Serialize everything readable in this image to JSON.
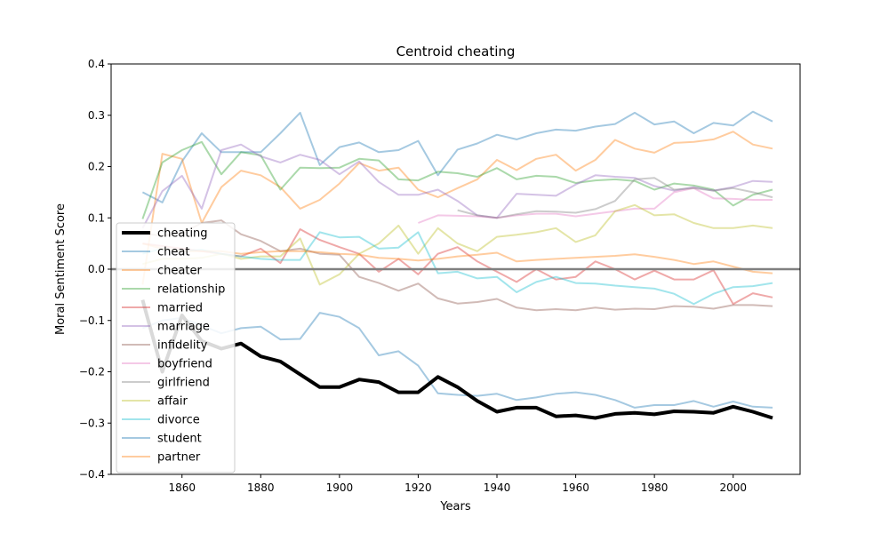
{
  "chart_data": {
    "type": "line",
    "title": "Centroid cheating",
    "xlabel": "Years",
    "ylabel": "Moral Sentiment Score",
    "xlim": [
      1842,
      2017
    ],
    "ylim": [
      -0.4,
      0.4
    ],
    "xticks": [
      1860,
      1880,
      1900,
      1920,
      1940,
      1960,
      1980,
      2000
    ],
    "yticks": [
      -0.4,
      -0.3,
      -0.2,
      -0.1,
      0.0,
      0.1,
      0.2,
      0.3,
      0.4
    ],
    "grid": false,
    "legend_position": "left",
    "reference_line": {
      "y": 0.0,
      "color": "#808080"
    },
    "series": [
      {
        "name": "cheating",
        "color": "#000000",
        "emphasis": true,
        "x": [
          1850,
          1855,
          1860,
          1865,
          1870,
          1875,
          1880,
          1885,
          1890,
          1895,
          1900,
          1905,
          1910,
          1915,
          1920,
          1925,
          1930,
          1935,
          1940,
          1945,
          1950,
          1955,
          1960,
          1965,
          1970,
          1975,
          1980,
          1985,
          1990,
          1995,
          2000,
          2005,
          2010
        ],
        "y": [
          -0.06,
          -0.2,
          -0.09,
          -0.14,
          -0.155,
          -0.145,
          -0.17,
          -0.18,
          -0.205,
          -0.23,
          -0.23,
          -0.215,
          -0.22,
          -0.24,
          -0.24,
          -0.21,
          -0.23,
          -0.257,
          -0.278,
          -0.27,
          -0.27,
          -0.287,
          -0.285,
          -0.29,
          -0.282,
          -0.28,
          -0.283,
          -0.277,
          -0.278,
          -0.28,
          -0.268,
          -0.278,
          -0.29
        ]
      },
      {
        "name": "cheat",
        "color": "#1f77b4",
        "x": [
          1850,
          1855,
          1860,
          1865,
          1870,
          1875,
          1880,
          1885,
          1890,
          1895,
          1900,
          1905,
          1910,
          1915,
          1920,
          1925,
          1930,
          1935,
          1940,
          1945,
          1950,
          1955,
          1960,
          1965,
          1970,
          1975,
          1980,
          1985,
          1990,
          1995,
          2000,
          2005,
          2010
        ],
        "y": [
          0.15,
          0.13,
          0.21,
          0.265,
          0.228,
          0.228,
          0.228,
          0.265,
          0.305,
          0.203,
          0.238,
          0.247,
          0.228,
          0.232,
          0.25,
          0.183,
          0.233,
          0.245,
          0.262,
          0.253,
          0.265,
          0.272,
          0.27,
          0.278,
          0.283,
          0.305,
          0.282,
          0.288,
          0.265,
          0.285,
          0.28,
          0.307,
          0.288
        ]
      },
      {
        "name": "cheater",
        "color": "#ff7f0e",
        "x": [
          1850,
          1855,
          1860,
          1865,
          1870,
          1875,
          1880,
          1885,
          1890,
          1895,
          1900,
          1905,
          1910,
          1915,
          1920,
          1925,
          1930,
          1935,
          1940,
          1945,
          1950,
          1955,
          1960,
          1965,
          1970,
          1975,
          1980,
          1985,
          1990,
          1995,
          2000,
          2005,
          2010
        ],
        "y": [
          -0.03,
          0.225,
          0.215,
          0.09,
          0.16,
          0.192,
          0.183,
          0.16,
          0.118,
          0.135,
          0.167,
          0.207,
          0.192,
          0.198,
          0.155,
          0.14,
          0.158,
          0.175,
          0.213,
          0.193,
          0.215,
          0.223,
          0.192,
          0.213,
          0.252,
          0.235,
          0.227,
          0.246,
          0.248,
          0.253,
          0.268,
          0.243,
          0.235
        ]
      },
      {
        "name": "relationship",
        "color": "#2ca02c",
        "x": [
          1850,
          1855,
          1860,
          1865,
          1870,
          1875,
          1880,
          1885,
          1890,
          1895,
          1900,
          1905,
          1910,
          1915,
          1920,
          1925,
          1930,
          1935,
          1940,
          1945,
          1950,
          1955,
          1960,
          1965,
          1970,
          1975,
          1980,
          1985,
          1990,
          1995,
          2000,
          2005,
          2010
        ],
        "y": [
          0.098,
          0.208,
          0.232,
          0.248,
          0.185,
          0.228,
          0.222,
          0.155,
          0.198,
          0.197,
          0.198,
          0.215,
          0.212,
          0.175,
          0.173,
          0.19,
          0.187,
          0.18,
          0.197,
          0.175,
          0.182,
          0.18,
          0.168,
          0.173,
          0.175,
          0.172,
          0.155,
          0.167,
          0.163,
          0.155,
          0.124,
          0.145,
          0.155
        ]
      },
      {
        "name": "married",
        "color": "#d62728",
        "x": [
          1850,
          1855,
          1860,
          1865,
          1870,
          1875,
          1880,
          1885,
          1890,
          1895,
          1900,
          1905,
          1910,
          1915,
          1920,
          1925,
          1930,
          1935,
          1940,
          1945,
          1950,
          1955,
          1960,
          1965,
          1970,
          1975,
          1980,
          1985,
          1990,
          1995,
          2000,
          2005,
          2010
        ],
        "y": [
          0.05,
          0.045,
          0.04,
          0.035,
          0.03,
          0.025,
          0.04,
          0.012,
          0.078,
          0.057,
          0.043,
          0.03,
          -0.005,
          0.02,
          -0.01,
          0.03,
          0.043,
          0.015,
          -0.005,
          -0.025,
          0.0,
          -0.02,
          -0.015,
          0.015,
          0.0,
          -0.02,
          -0.003,
          -0.02,
          -0.02,
          -0.002,
          -0.068,
          -0.047,
          -0.055
        ]
      },
      {
        "name": "marriage",
        "color": "#9467bd",
        "x": [
          1850,
          1855,
          1860,
          1865,
          1870,
          1875,
          1880,
          1885,
          1890,
          1895,
          1900,
          1905,
          1910,
          1915,
          1920,
          1925,
          1930,
          1935,
          1940,
          1945,
          1950,
          1955,
          1960,
          1965,
          1970,
          1975,
          1980,
          1985,
          1990,
          1995,
          2000,
          2005,
          2010
        ],
        "y": [
          0.08,
          0.152,
          0.182,
          0.118,
          0.232,
          0.243,
          0.22,
          0.208,
          0.223,
          0.213,
          0.185,
          0.21,
          0.17,
          0.145,
          0.145,
          0.155,
          0.133,
          0.105,
          0.1,
          0.147,
          0.145,
          0.143,
          0.165,
          0.183,
          0.18,
          0.178,
          0.162,
          0.153,
          0.16,
          0.153,
          0.16,
          0.172,
          0.17
        ]
      },
      {
        "name": "infidelity",
        "color": "#8c564b",
        "x": [
          1850,
          1855,
          1860,
          1865,
          1870,
          1875,
          1880,
          1885,
          1890,
          1895,
          1900,
          1905,
          1910,
          1915,
          1920,
          1925,
          1930,
          1935,
          1940,
          1945,
          1950,
          1955,
          1960,
          1965,
          1970,
          1975,
          1980,
          1985,
          1990,
          1995,
          2000,
          2005,
          2010
        ],
        "y": [
          0.07,
          0.065,
          0.07,
          0.09,
          0.095,
          0.068,
          0.055,
          0.035,
          0.04,
          0.03,
          0.028,
          -0.015,
          -0.027,
          -0.042,
          -0.028,
          -0.057,
          -0.067,
          -0.064,
          -0.058,
          -0.075,
          -0.08,
          -0.078,
          -0.08,
          -0.075,
          -0.079,
          -0.077,
          -0.078,
          -0.072,
          -0.073,
          -0.077,
          -0.07,
          -0.07,
          -0.072
        ]
      },
      {
        "name": "boyfriend",
        "color": "#e377c2",
        "x": [
          1920,
          1925,
          1930,
          1935,
          1940,
          1945,
          1950,
          1955,
          1960,
          1965,
          1970,
          1975,
          1980,
          1985,
          1990,
          1995,
          2000,
          2005,
          2010
        ],
        "y": [
          0.09,
          0.105,
          0.104,
          0.103,
          0.1,
          0.105,
          0.108,
          0.108,
          0.103,
          0.108,
          0.113,
          0.118,
          0.118,
          0.15,
          0.158,
          0.138,
          0.137,
          0.135,
          0.135
        ]
      },
      {
        "name": "girlfriend",
        "color": "#7f7f7f",
        "x": [
          1930,
          1935,
          1940,
          1945,
          1950,
          1955,
          1960,
          1965,
          1970,
          1975,
          1980,
          1985,
          1990,
          1995,
          2000,
          2005,
          2010
        ],
        "y": [
          0.115,
          0.105,
          0.1,
          0.107,
          0.113,
          0.112,
          0.11,
          0.117,
          0.133,
          0.175,
          0.178,
          0.155,
          0.158,
          0.153,
          0.158,
          0.15,
          0.14
        ]
      },
      {
        "name": "affair",
        "color": "#bcbd22",
        "x": [
          1850,
          1855,
          1860,
          1865,
          1870,
          1875,
          1880,
          1885,
          1890,
          1895,
          1900,
          1905,
          1910,
          1915,
          1920,
          1925,
          1930,
          1935,
          1940,
          1945,
          1950,
          1955,
          1960,
          1965,
          1970,
          1975,
          1980,
          1985,
          1990,
          1995,
          2000,
          2005,
          2010
        ],
        "y": [
          0.01,
          0.02,
          0.02,
          0.022,
          0.03,
          0.02,
          0.025,
          0.025,
          0.06,
          -0.03,
          -0.01,
          0.03,
          0.05,
          0.085,
          0.03,
          0.08,
          0.05,
          0.035,
          0.063,
          0.067,
          0.072,
          0.08,
          0.053,
          0.066,
          0.113,
          0.125,
          0.105,
          0.107,
          0.09,
          0.08,
          0.08,
          0.085,
          0.08
        ]
      },
      {
        "name": "divorce",
        "color": "#17becf",
        "x": [
          1850,
          1855,
          1860,
          1865,
          1870,
          1875,
          1880,
          1885,
          1890,
          1895,
          1900,
          1905,
          1910,
          1915,
          1920,
          1925,
          1930,
          1935,
          1940,
          1945,
          1950,
          1955,
          1960,
          1965,
          1970,
          1975,
          1980,
          1985,
          1990,
          1995,
          2000,
          2005,
          2010
        ],
        "y": [
          0.03,
          0.04,
          0.035,
          0.038,
          0.03,
          0.025,
          0.02,
          0.018,
          0.018,
          0.072,
          0.062,
          0.063,
          0.04,
          0.042,
          0.072,
          -0.008,
          -0.005,
          -0.018,
          -0.015,
          -0.045,
          -0.025,
          -0.015,
          -0.027,
          -0.028,
          -0.032,
          -0.035,
          -0.038,
          -0.048,
          -0.068,
          -0.048,
          -0.035,
          -0.033,
          -0.027
        ]
      },
      {
        "name": "student",
        "color": "#1f77b4",
        "x": [
          1850,
          1855,
          1860,
          1865,
          1870,
          1875,
          1880,
          1885,
          1890,
          1895,
          1900,
          1905,
          1910,
          1915,
          1920,
          1925,
          1930,
          1935,
          1940,
          1945,
          1950,
          1955,
          1960,
          1965,
          1970,
          1975,
          1980,
          1985,
          1990,
          1995,
          2000,
          2005,
          2010
        ],
        "y": [
          -0.115,
          -0.1,
          -0.095,
          -0.11,
          -0.125,
          -0.115,
          -0.112,
          -0.137,
          -0.136,
          -0.085,
          -0.093,
          -0.115,
          -0.168,
          -0.16,
          -0.188,
          -0.242,
          -0.245,
          -0.247,
          -0.243,
          -0.255,
          -0.25,
          -0.243,
          -0.24,
          -0.245,
          -0.255,
          -0.27,
          -0.265,
          -0.265,
          -0.257,
          -0.268,
          -0.258,
          -0.268,
          -0.27
        ]
      },
      {
        "name": "partner",
        "color": "#ff7f0e",
        "x": [
          1850,
          1855,
          1860,
          1865,
          1870,
          1875,
          1880,
          1885,
          1890,
          1895,
          1900,
          1905,
          1910,
          1915,
          1920,
          1925,
          1930,
          1935,
          1940,
          1945,
          1950,
          1955,
          1960,
          1965,
          1970,
          1975,
          1980,
          1985,
          1990,
          1995,
          2000,
          2005,
          2010
        ],
        "y": [
          0.05,
          0.04,
          0.035,
          0.035,
          0.035,
          0.03,
          0.033,
          0.035,
          0.035,
          0.033,
          0.03,
          0.028,
          0.022,
          0.02,
          0.017,
          0.02,
          0.025,
          0.028,
          0.032,
          0.015,
          0.018,
          0.02,
          0.022,
          0.024,
          0.026,
          0.029,
          0.024,
          0.018,
          0.01,
          0.015,
          0.005,
          -0.005,
          -0.008
        ]
      }
    ]
  }
}
